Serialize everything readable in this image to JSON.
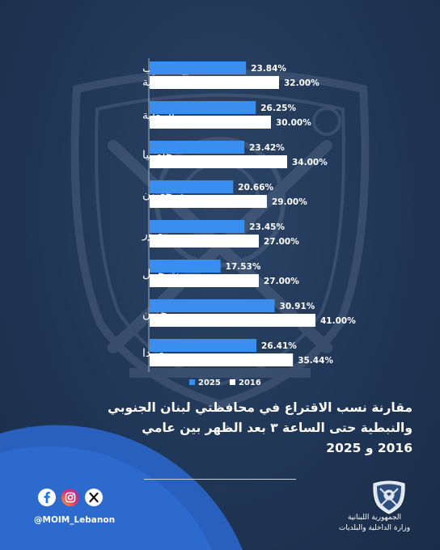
{
  "chart_data": {
    "type": "bar",
    "orientation": "horizontal",
    "categories": [
      "مجموع الجنوب والنبطية",
      "النبطية",
      "حاصبيا",
      "مرجعيون",
      "صور",
      "بنت جبيل",
      "جزين",
      "صيدا"
    ],
    "category_lines": [
      [
        "مجموع الجنوب",
        "والنبطية"
      ],
      [
        "النبطية"
      ],
      [
        "حاصبيا"
      ],
      [
        "مرجعيون"
      ],
      [
        "صور"
      ],
      [
        "بنت جبيل"
      ],
      [
        "جزين"
      ],
      [
        "صيدا"
      ]
    ],
    "series": [
      {
        "name": "2025",
        "color": "#3a8ef0",
        "values": [
          23.84,
          26.25,
          23.42,
          20.66,
          23.45,
          17.53,
          30.91,
          26.41
        ],
        "labels": [
          "23.84%",
          "26.25%",
          "23.42%",
          "20.66%",
          "23.45%",
          "17.53%",
          "30.91%",
          "26.41%"
        ]
      },
      {
        "name": "2016",
        "color": "#ffffff",
        "values": [
          32.0,
          30.0,
          34.0,
          29.0,
          27.0,
          27.0,
          41.0,
          35.44
        ],
        "labels": [
          "32.00%",
          "30.00%",
          "34.00%",
          "29.00%",
          "27.00%",
          "27.00%",
          "41.00%",
          "35.44%"
        ]
      }
    ],
    "xlim": [
      0,
      50
    ],
    "grid": false,
    "legend_position": "bottom-left"
  },
  "title": {
    "lines": [
      "مقارنة نسب الاقتراع في محافظتي لبنان الجنوبي",
      "والنبطية حتى الساعة ٣ بعد الظهر بين عامي",
      "2016 و 2025"
    ]
  },
  "social": {
    "icons": [
      "facebook-icon",
      "instagram-icon",
      "x-icon"
    ],
    "handle": "@MOIM_Lebanon"
  },
  "footer": {
    "org_line1": "الجمهورية اللبنانية",
    "org_line2": "وزارة الداخلية والبلديات"
  },
  "colors": {
    "background": "#203656",
    "accent": "#3a8ef0",
    "corner": "#2a6fd6"
  }
}
